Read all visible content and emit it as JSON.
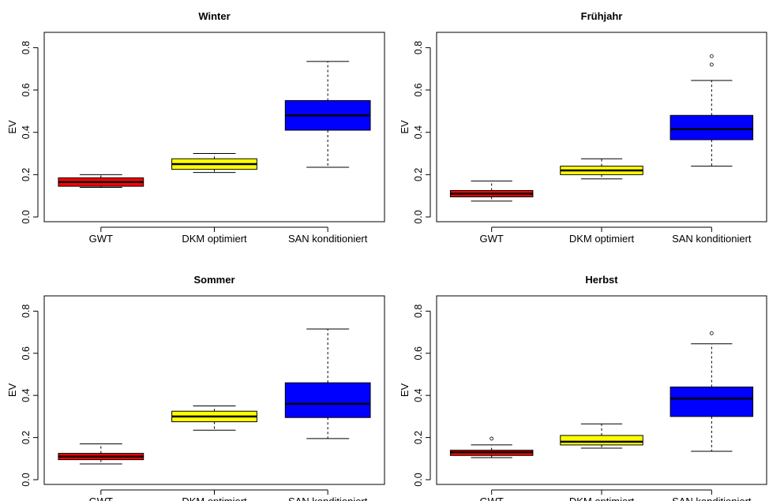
{
  "chart_data": [
    {
      "type": "boxplot",
      "title": "Winter",
      "ylabel": "EV",
      "ylim": [
        0,
        0.85
      ],
      "yticks": [
        "0.0",
        "0.2",
        "0.4",
        "0.6",
        "0.8"
      ],
      "categories": [
        "GWT",
        "DKM optimiert",
        "SAN konditioniert"
      ],
      "colors": [
        "#ff0000",
        "#ffff00",
        "#0000ff"
      ],
      "boxes": [
        {
          "whisker_low": 0.14,
          "q1": 0.145,
          "median": 0.165,
          "q3": 0.185,
          "whisker_high": 0.2,
          "outliers": []
        },
        {
          "whisker_low": 0.21,
          "q1": 0.225,
          "median": 0.25,
          "q3": 0.275,
          "whisker_high": 0.3,
          "outliers": []
        },
        {
          "whisker_low": 0.235,
          "q1": 0.41,
          "median": 0.48,
          "q3": 0.55,
          "whisker_high": 0.735,
          "outliers": []
        }
      ]
    },
    {
      "type": "boxplot",
      "title": "Frühjahr",
      "ylabel": "EV",
      "ylim": [
        0,
        0.85
      ],
      "yticks": [
        "0.0",
        "0.2",
        "0.4",
        "0.6",
        "0.8"
      ],
      "categories": [
        "GWT",
        "DKM optimiert",
        "SAN konditioniert"
      ],
      "colors": [
        "#ff0000",
        "#ffff00",
        "#0000ff"
      ],
      "boxes": [
        {
          "whisker_low": 0.075,
          "q1": 0.095,
          "median": 0.11,
          "q3": 0.125,
          "whisker_high": 0.17,
          "outliers": []
        },
        {
          "whisker_low": 0.18,
          "q1": 0.2,
          "median": 0.22,
          "q3": 0.24,
          "whisker_high": 0.275,
          "outliers": []
        },
        {
          "whisker_low": 0.24,
          "q1": 0.365,
          "median": 0.415,
          "q3": 0.48,
          "whisker_high": 0.645,
          "outliers": [
            0.72,
            0.76
          ]
        }
      ]
    },
    {
      "type": "boxplot",
      "title": "Sommer",
      "ylabel": "EV",
      "ylim": [
        0,
        0.85
      ],
      "yticks": [
        "0.0",
        "0.2",
        "0.4",
        "0.6",
        "0.8"
      ],
      "categories": [
        "GWT",
        "DKM optimiert",
        "SAN konditioniert"
      ],
      "colors": [
        "#ff0000",
        "#ffff00",
        "#0000ff"
      ],
      "boxes": [
        {
          "whisker_low": 0.075,
          "q1": 0.095,
          "median": 0.11,
          "q3": 0.125,
          "whisker_high": 0.17,
          "outliers": []
        },
        {
          "whisker_low": 0.235,
          "q1": 0.275,
          "median": 0.3,
          "q3": 0.325,
          "whisker_high": 0.35,
          "outliers": []
        },
        {
          "whisker_low": 0.195,
          "q1": 0.295,
          "median": 0.36,
          "q3": 0.46,
          "whisker_high": 0.715,
          "outliers": []
        }
      ]
    },
    {
      "type": "boxplot",
      "title": "Herbst",
      "ylabel": "EV",
      "ylim": [
        0,
        0.85
      ],
      "yticks": [
        "0.0",
        "0.2",
        "0.4",
        "0.6",
        "0.8"
      ],
      "categories": [
        "GWT",
        "DKM optimiert",
        "SAN konditioniert"
      ],
      "colors": [
        "#ff0000",
        "#ffff00",
        "#0000ff"
      ],
      "boxes": [
        {
          "whisker_low": 0.105,
          "q1": 0.115,
          "median": 0.13,
          "q3": 0.14,
          "whisker_high": 0.165,
          "outliers": [
            0.195
          ]
        },
        {
          "whisker_low": 0.15,
          "q1": 0.165,
          "median": 0.18,
          "q3": 0.21,
          "whisker_high": 0.265,
          "outliers": []
        },
        {
          "whisker_low": 0.135,
          "q1": 0.3,
          "median": 0.385,
          "q3": 0.44,
          "whisker_high": 0.645,
          "outliers": [
            0.695
          ]
        }
      ]
    }
  ]
}
